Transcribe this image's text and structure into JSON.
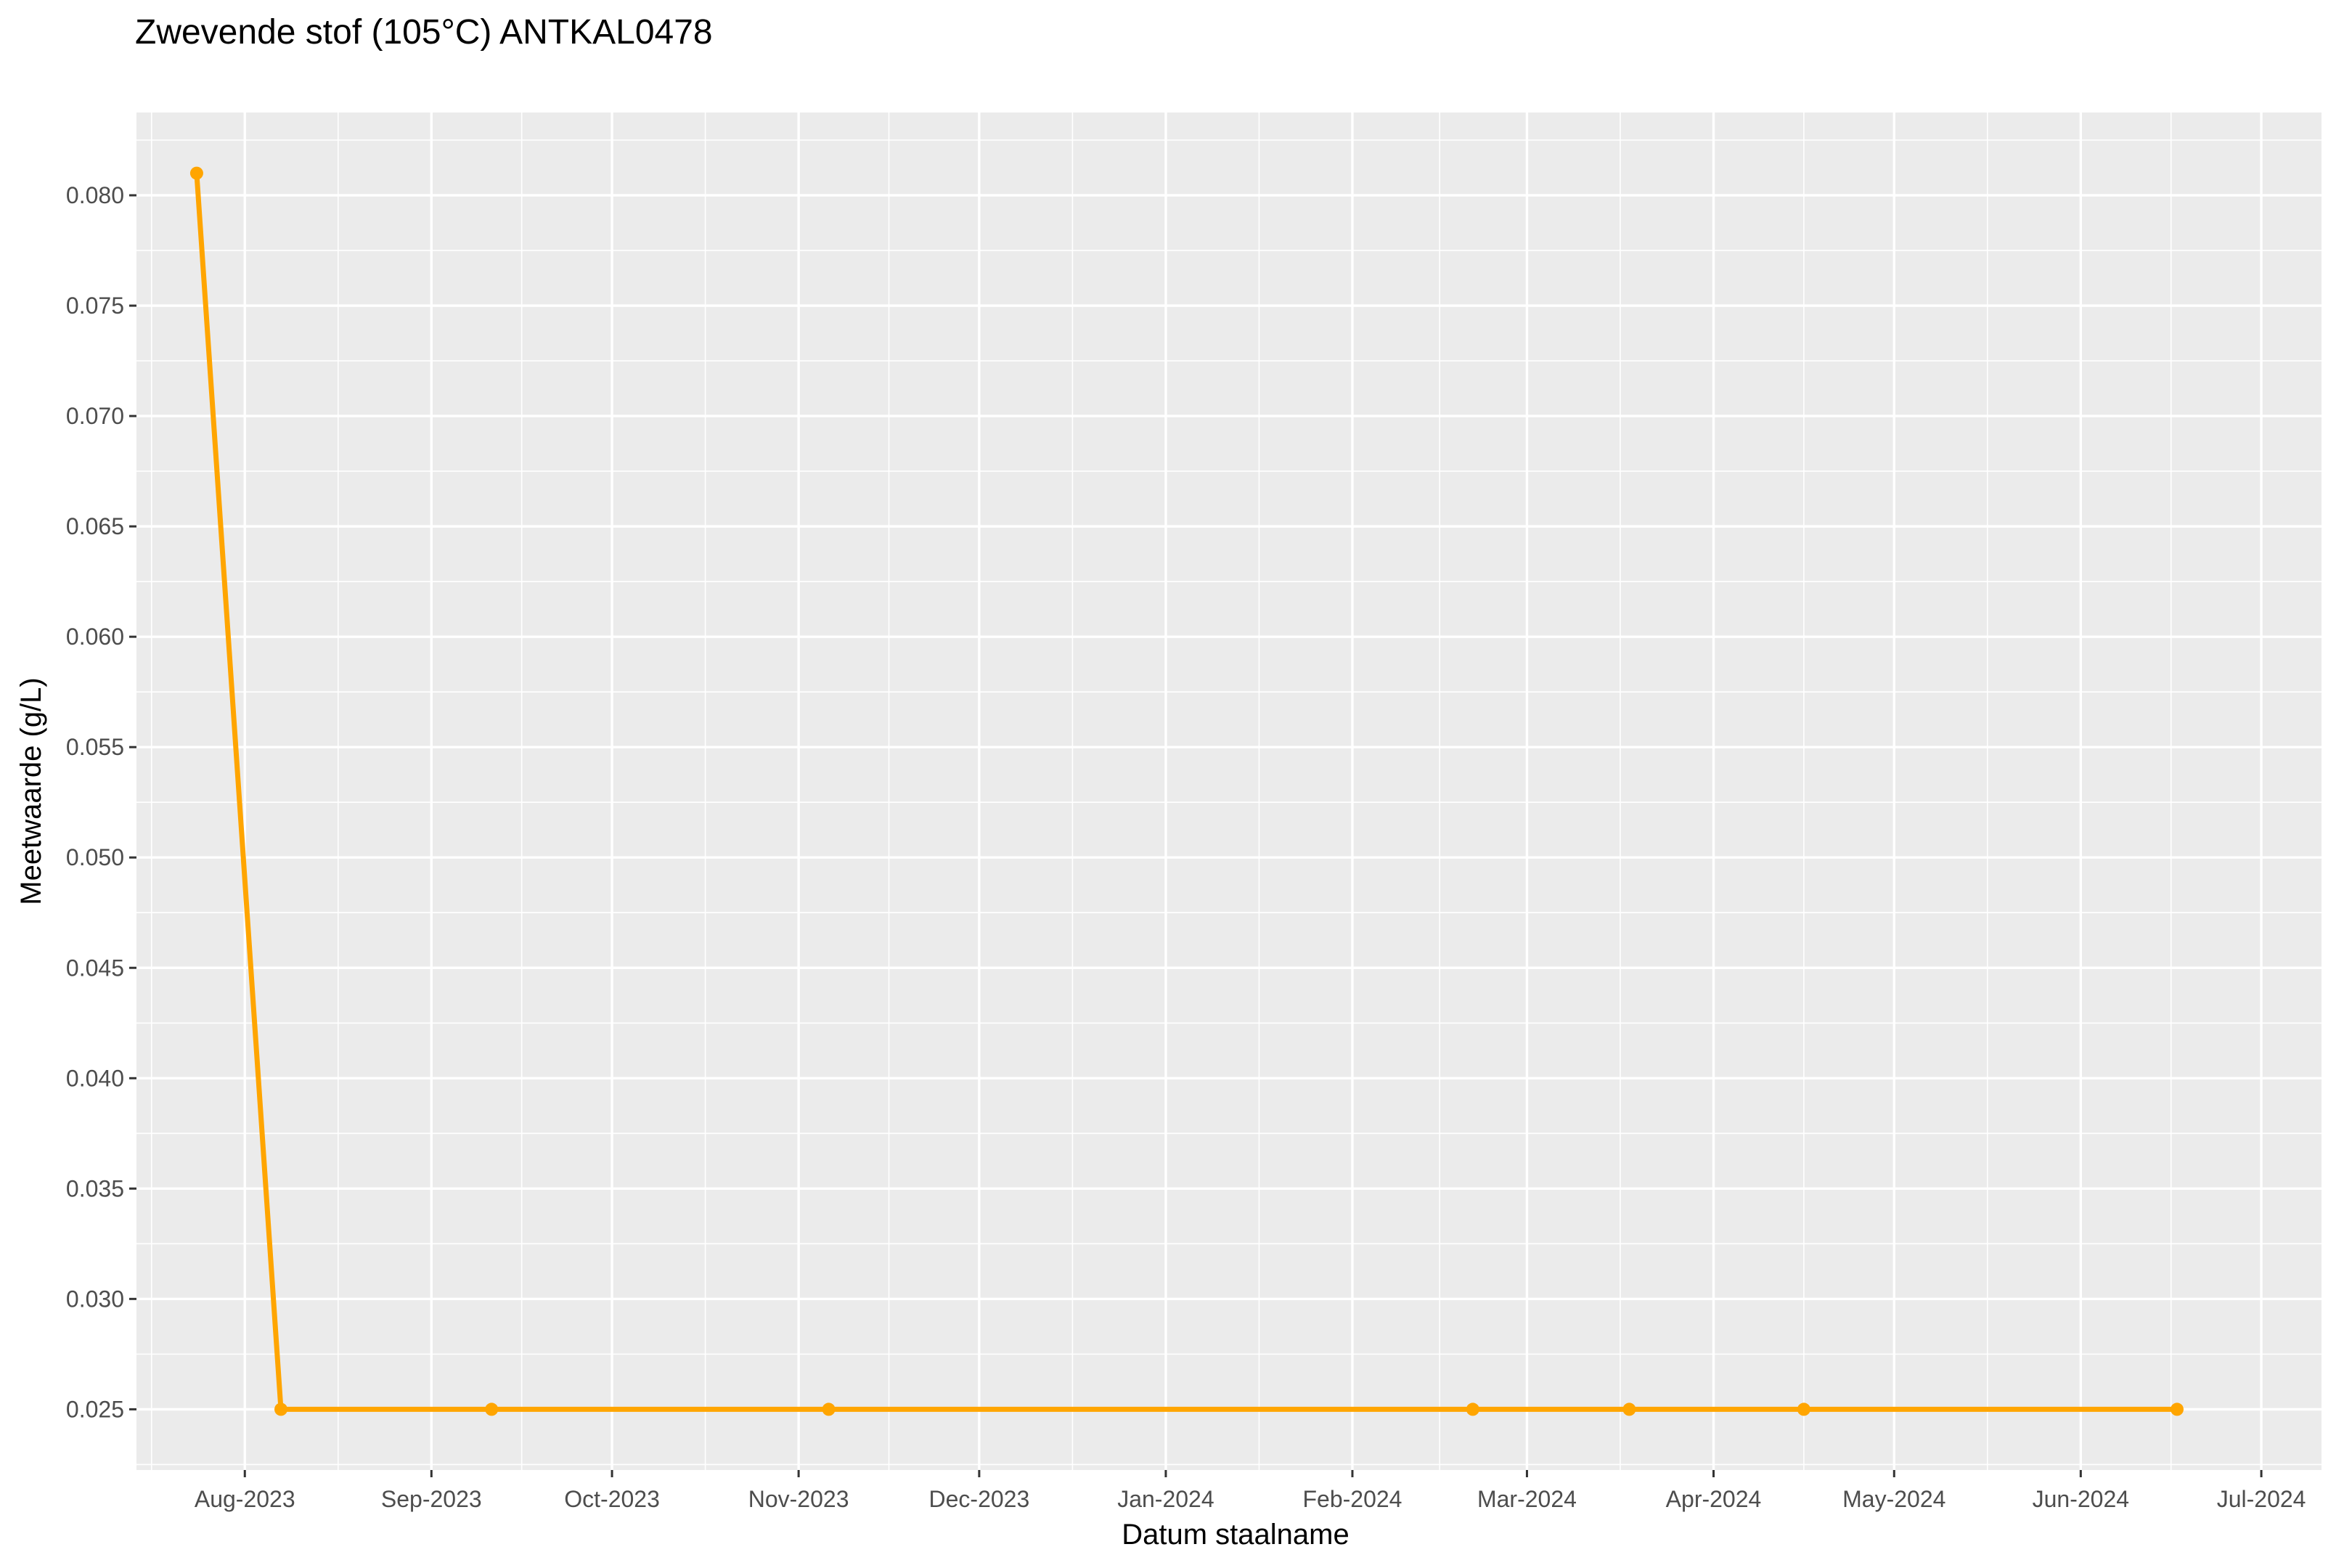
{
  "chart_data": {
    "type": "line",
    "title": "Zwevende stof (105°C) ANTKAL0478",
    "xlabel": "Datum staalname",
    "ylabel": "Meetwaarde (g/L)",
    "x_tick_labels": [
      "Aug-2023",
      "Sep-2023",
      "Oct-2023",
      "Nov-2023",
      "Dec-2023",
      "Jan-2024",
      "Feb-2024",
      "Mar-2024",
      "Apr-2024",
      "May-2024",
      "Jun-2024",
      "Jul-2024"
    ],
    "y_tick_labels": [
      "0.025",
      "0.030",
      "0.035",
      "0.040",
      "0.045",
      "0.050",
      "0.055",
      "0.060",
      "0.065",
      "0.070",
      "0.075",
      "0.080"
    ],
    "xlim": [
      "2023-07-14",
      "2024-07-11"
    ],
    "ylim": [
      0.02225,
      0.08375
    ],
    "grid": true,
    "series": [
      {
        "color": "#FFA500",
        "x": [
          "2023-07-24",
          "2023-08-07",
          "2023-09-11",
          "2023-11-06",
          "2024-02-21",
          "2024-03-18",
          "2024-04-16",
          "2024-06-17"
        ],
        "y": [
          0.081,
          0.025,
          0.025,
          0.025,
          0.025,
          0.025,
          0.025,
          0.025
        ]
      }
    ],
    "colors": {
      "panel": "#EBEBEB",
      "grid": "#FFFFFF",
      "line": "#FFA500",
      "tick_text": "#4D4D4D",
      "tick_mark": "#333333"
    }
  }
}
